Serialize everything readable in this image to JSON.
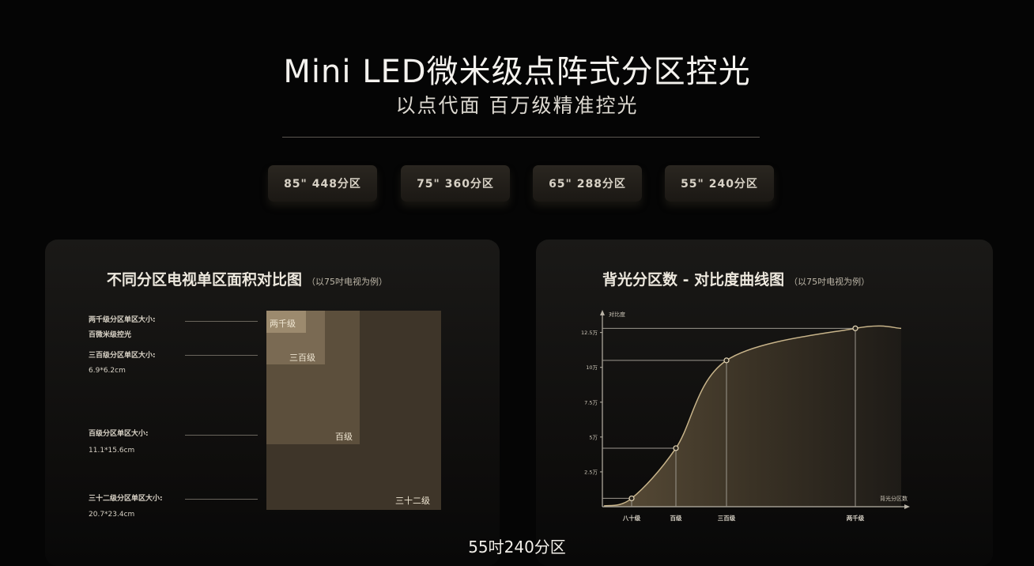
{
  "header": {
    "title": "Mini LED微米级点阵式分区控光",
    "subtitle": "以点代面 百万级精准控光"
  },
  "zone_options": [
    {
      "label": "85\" 448分区"
    },
    {
      "label": "75\" 360分区"
    },
    {
      "label": "65\" 288分区"
    },
    {
      "label": "55\" 240分区"
    }
  ],
  "left_panel": {
    "title": "不同分区电视单区面积对比图",
    "note": "（以75吋电视为例）",
    "labels": {
      "l1a": "两千级分区单区大小:",
      "l1b": "百微米级控光",
      "l2a": "三百级分区单区大小:",
      "l2b": "6.9*6.2cm",
      "l3a": "百级分区单区大小:",
      "l3b": "11.1*15.6cm",
      "l4a": "三十二级分区单区大小:",
      "l4b": "20.7*23.4cm"
    },
    "boxes": {
      "b1": "两千级",
      "b2": "三百级",
      "b3": "百级",
      "b4": "三十二级"
    }
  },
  "right_panel": {
    "title": "背光分区数 - 对比度曲线图",
    "note": "（以75吋电视为例）",
    "y_axis_label": "对比度",
    "x_axis_label": "背光分区数",
    "y_ticks": [
      "12.5万",
      "10万",
      "7.5万",
      "5万",
      "2.5万"
    ],
    "x_ticks": [
      "八十级",
      "百级",
      "三百级",
      "两千级"
    ]
  },
  "chart_data": {
    "type": "area",
    "title": "背光分区数 - 对比度曲线图",
    "xlabel": "背光分区数",
    "ylabel": "对比度",
    "categories": [
      "八十级",
      "百级",
      "三百级",
      "两千级"
    ],
    "y_tick_labels": [
      "2.5万",
      "5万",
      "7.5万",
      "10万",
      "12.5万"
    ],
    "points": [
      {
        "x": "八十级",
        "y": 0.6
      },
      {
        "x": "百级",
        "y": 4.2
      },
      {
        "x": "三百级",
        "y": 10.5
      },
      {
        "x": "两千级",
        "y": 12.8
      }
    ],
    "y_unit": "万",
    "ylim": [
      0,
      13.5
    ],
    "grid": false,
    "colors": {
      "curve": "#c8b48a",
      "fill": "#3a3225",
      "line": "#9c978e"
    }
  },
  "caption": "55吋240分区",
  "colors": {
    "background": "#050505",
    "panel": "#1a1917",
    "accent": "#bfa67a"
  }
}
